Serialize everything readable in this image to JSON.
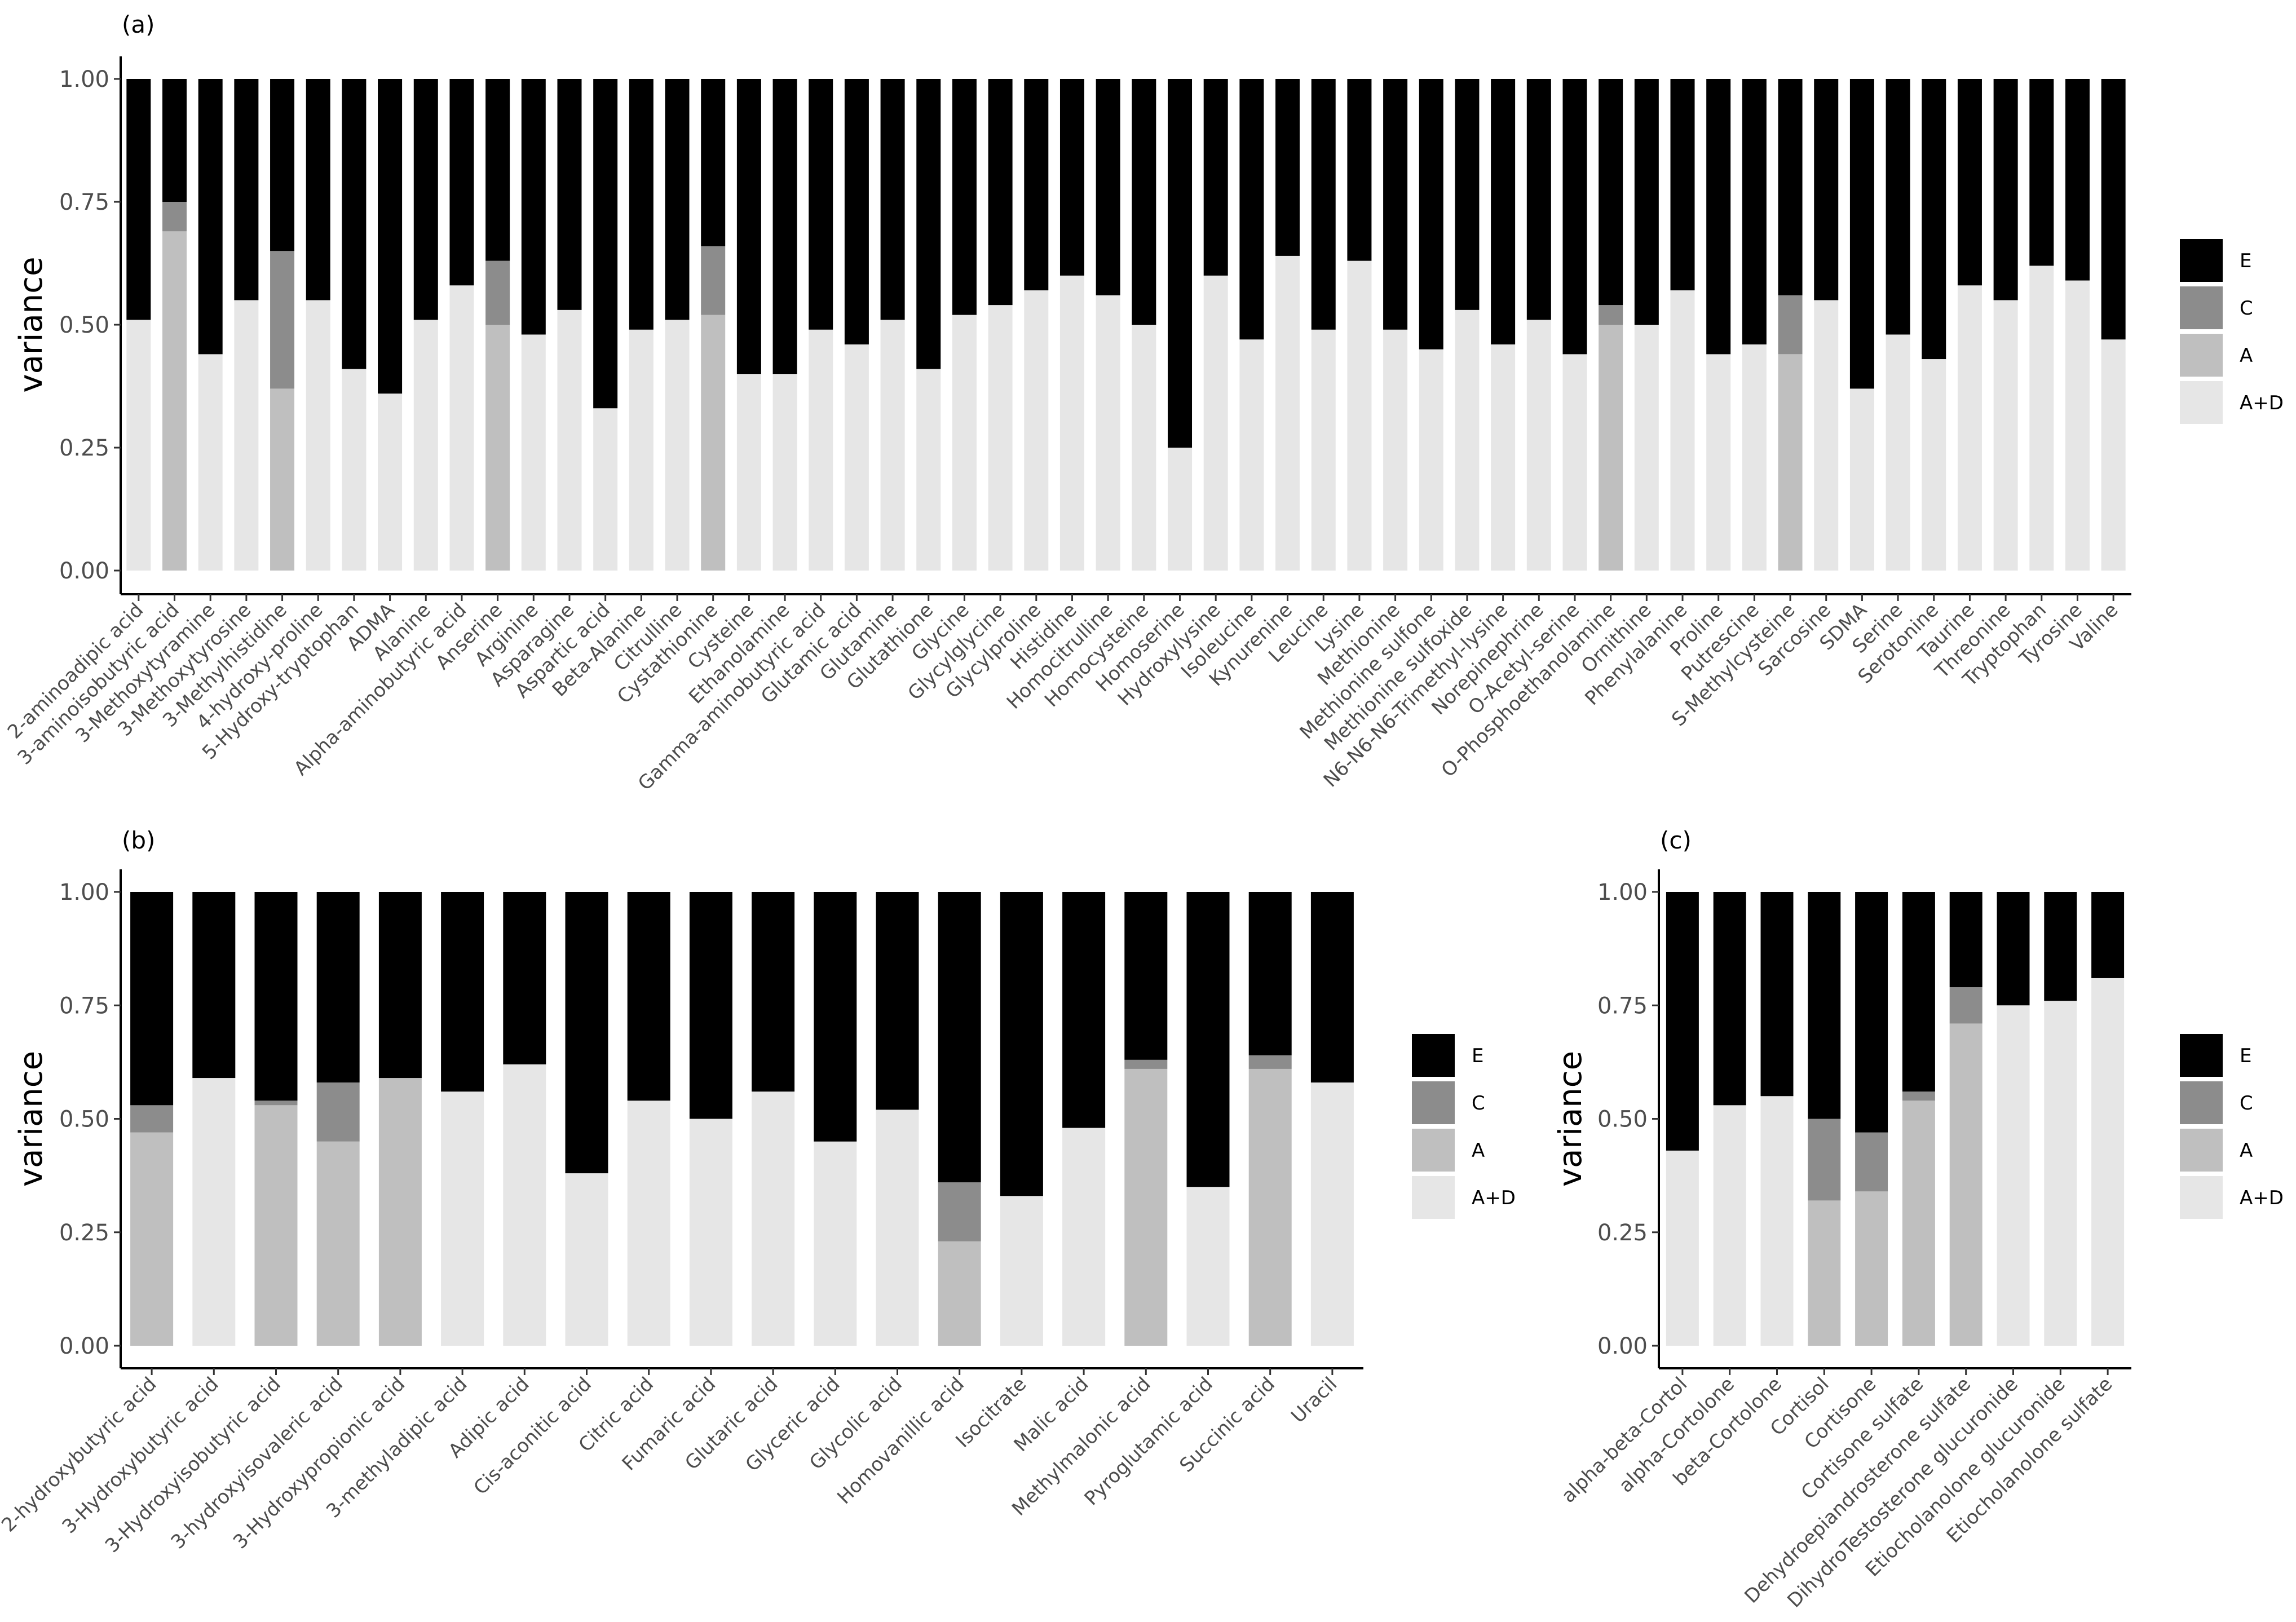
{
  "legend": {
    "title": "",
    "items": [
      {
        "key": "E",
        "label": "E",
        "color": "#000000"
      },
      {
        "key": "C",
        "label": "C",
        "color": "#8c8c8c"
      },
      {
        "key": "A",
        "label": "A",
        "color": "#bfbfbf"
      },
      {
        "key": "AD",
        "label": "A+D",
        "color": "#e6e6e6"
      }
    ]
  },
  "chart_data": [
    {
      "panel": "(a)",
      "type": "bar",
      "stacked": true,
      "ylabel": "variance",
      "xlabel": "",
      "ylim": [
        0,
        1
      ],
      "yticks": [
        "0.00",
        "0.25",
        "0.50",
        "0.75",
        "1.00"
      ],
      "categories": [
        "2-aminoadipic acid",
        "3-aminoisobutyric acid",
        "3-Methoxytyramine",
        "3-Methoxytyrosine",
        "3-Methylhistidine",
        "4-hydroxy-proline",
        "5-Hydroxy-tryptophan",
        "ADMA",
        "Alanine",
        "Alpha-aminobutyric acid",
        "Anserine",
        "Arginine",
        "Asparagine",
        "Aspartic acid",
        "Beta-Alanine",
        "Citrulline",
        "Cystathionine",
        "Cysteine",
        "Ethanolamine",
        "Gamma-aminobutyric acid",
        "Glutamic acid",
        "Glutamine",
        "Glutathione",
        "Glycine",
        "Glycylglycine",
        "Glycylproline",
        "Histidine",
        "Homocitrulline",
        "Homocysteine",
        "Homoserine",
        "Hydroxylysine",
        "Isoleucine",
        "Kynurenine",
        "Leucine",
        "Lysine",
        "Methionine",
        "Methionine sulfone",
        "Methionine sulfoxide",
        "N6-N6-N6-Trimethyl-lysine",
        "Norepinephrine",
        "O-Acetyl-serine",
        "O-Phosphoethanolamine",
        "Ornithine",
        "Phenylalanine",
        "Proline",
        "Putrescine",
        "S-Methylcysteine",
        "Sarcosine",
        "SDMA",
        "Serine",
        "Serotonine",
        "Taurine",
        "Threonine",
        "Tryptophan",
        "Tyrosine",
        "Valine"
      ],
      "series": [
        {
          "name": "A+D",
          "values": [
            0.51,
            0,
            0.44,
            0.55,
            0,
            0.55,
            0.41,
            0.36,
            0.51,
            0.58,
            0,
            0.48,
            0.53,
            0.33,
            0.49,
            0.51,
            0,
            0.4,
            0.4,
            0.49,
            0.46,
            0.51,
            0.41,
            0.52,
            0.54,
            0.57,
            0.6,
            0.56,
            0.5,
            0.25,
            0.6,
            0.47,
            0.64,
            0.49,
            0.63,
            0.49,
            0.45,
            0.53,
            0.46,
            0.51,
            0.44,
            0,
            0.5,
            0.57,
            0.44,
            0.46,
            0,
            0.55,
            0.37,
            0.48,
            0.43,
            0.58,
            0.55,
            0.62,
            0.59,
            0.47
          ]
        },
        {
          "name": "A",
          "values": [
            0,
            0.69,
            0,
            0,
            0.37,
            0,
            0,
            0,
            0,
            0,
            0.5,
            0,
            0,
            0,
            0,
            0,
            0.52,
            0,
            0,
            0,
            0,
            0,
            0,
            0,
            0,
            0,
            0,
            0,
            0,
            0,
            0,
            0,
            0,
            0,
            0,
            0,
            0,
            0,
            0,
            0,
            0,
            0.5,
            0,
            0,
            0,
            0,
            0.44,
            0,
            0,
            0,
            0,
            0,
            0,
            0,
            0,
            0
          ]
        },
        {
          "name": "C",
          "values": [
            0,
            0.06,
            0,
            0,
            0.28,
            0,
            0,
            0,
            0,
            0,
            0.13,
            0,
            0,
            0,
            0,
            0,
            0.14,
            0,
            0,
            0,
            0,
            0,
            0,
            0,
            0,
            0,
            0,
            0,
            0,
            0,
            0,
            0,
            0,
            0,
            0,
            0,
            0,
            0,
            0,
            0,
            0,
            0.04,
            0,
            0,
            0,
            0,
            0.12,
            0,
            0,
            0,
            0,
            0,
            0,
            0,
            0,
            0
          ]
        },
        {
          "name": "E",
          "values": [
            0.49,
            0.25,
            0.56,
            0.45,
            0.35,
            0.45,
            0.59,
            0.64,
            0.49,
            0.42,
            0.37,
            0.52,
            0.47,
            0.67,
            0.51,
            0.49,
            0.34,
            0.6,
            0.6,
            0.51,
            0.54,
            0.49,
            0.59,
            0.48,
            0.46,
            0.43,
            0.4,
            0.44,
            0.5,
            0.75,
            0.4,
            0.53,
            0.36,
            0.51,
            0.37,
            0.51,
            0.55,
            0.47,
            0.54,
            0.49,
            0.56,
            0.46,
            0.5,
            0.43,
            0.56,
            0.54,
            0.44,
            0.45,
            0.63,
            0.52,
            0.57,
            0.42,
            0.45,
            0.38,
            0.41,
            0.53
          ]
        }
      ]
    },
    {
      "panel": "(b)",
      "type": "bar",
      "stacked": true,
      "ylabel": "variance",
      "xlabel": "",
      "ylim": [
        0,
        1
      ],
      "yticks": [
        "0.00",
        "0.25",
        "0.50",
        "0.75",
        "1.00"
      ],
      "categories": [
        "2-hydroxybutyric acid",
        "3-Hydroxybutyric acid",
        "3-Hydroxyisobutyric acid",
        "3-hydroxyisovaleric acid",
        "3-Hydroxypropionic acid",
        "3-methyladipic acid",
        "Adipic acid",
        "Cis-aconitic acid",
        "Citric acid",
        "Fumaric acid",
        "Glutaric acid",
        "Glyceric acid",
        "Glycolic acid",
        "Homovanillic acid",
        "Isocitrate",
        "Malic acid",
        "Methylmalonic acid",
        "Pyroglutamic acid",
        "Succinic acid",
        "Uracil"
      ],
      "series": [
        {
          "name": "A+D",
          "values": [
            0,
            0.59,
            0,
            0,
            0,
            0.56,
            0.62,
            0.38,
            0.54,
            0.5,
            0.56,
            0.45,
            0.52,
            0,
            0.33,
            0.48,
            0,
            0.35,
            0,
            0.58
          ]
        },
        {
          "name": "A",
          "values": [
            0.47,
            0,
            0.53,
            0.45,
            0.59,
            0,
            0,
            0,
            0,
            0,
            0,
            0,
            0,
            0.23,
            0,
            0,
            0.61,
            0,
            0.61,
            0
          ]
        },
        {
          "name": "C",
          "values": [
            0.06,
            0,
            0.01,
            0.13,
            0,
            0,
            0,
            0,
            0,
            0,
            0,
            0,
            0,
            0.13,
            0,
            0,
            0.02,
            0,
            0.03,
            0
          ]
        },
        {
          "name": "E",
          "values": [
            0.47,
            0.41,
            0.46,
            0.42,
            0.41,
            0.44,
            0.38,
            0.62,
            0.46,
            0.5,
            0.44,
            0.55,
            0.48,
            0.64,
            0.67,
            0.52,
            0.37,
            0.65,
            0.36,
            0.42
          ]
        }
      ]
    },
    {
      "panel": "(c)",
      "type": "bar",
      "stacked": true,
      "ylabel": "variance",
      "xlabel": "",
      "ylim": [
        0,
        1
      ],
      "yticks": [
        "0.00",
        "0.25",
        "0.50",
        "0.75",
        "1.00"
      ],
      "categories": [
        "alpha-beta-Cortol",
        "alpha-Cortolone",
        "beta-Cortolone",
        "Cortisol",
        "Cortisone",
        "Cortisone sulfate",
        "Dehydroepiandrosterone sulfate",
        "DihydroTestosterone glucuronide",
        "Etiocholanolone glucuronide",
        "Etiocholanolone sulfate"
      ],
      "series": [
        {
          "name": "A+D",
          "values": [
            0.43,
            0.53,
            0.55,
            0,
            0,
            0,
            0,
            0.75,
            0.76,
            0.81
          ]
        },
        {
          "name": "A",
          "values": [
            0,
            0,
            0,
            0.32,
            0.34,
            0.54,
            0.71,
            0,
            0,
            0
          ]
        },
        {
          "name": "C",
          "values": [
            0,
            0,
            0,
            0.18,
            0.13,
            0.02,
            0.08,
            0,
            0,
            0
          ]
        },
        {
          "name": "E",
          "values": [
            0.57,
            0.47,
            0.45,
            0.5,
            0.53,
            0.44,
            0.21,
            0.25,
            0.24,
            0.19
          ]
        }
      ]
    }
  ]
}
